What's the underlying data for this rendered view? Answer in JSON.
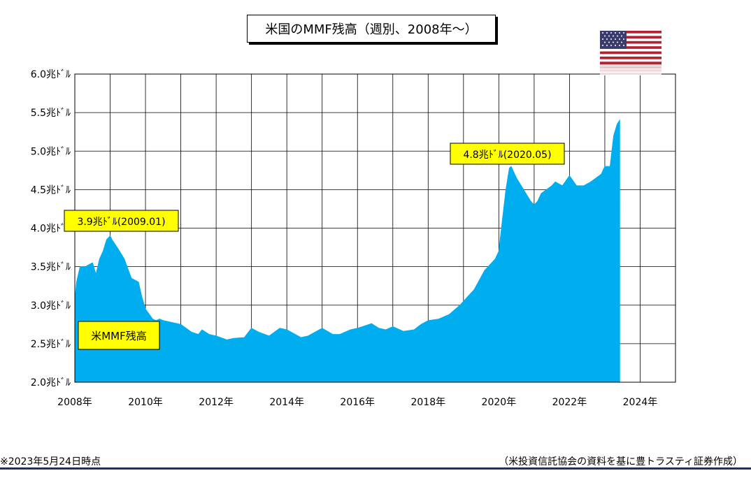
{
  "title": "米国のMMF残高（週別、2008年～）",
  "footnote": "※2023年5月24日時点",
  "source": "（米投資信託協会の資料を基に豊トラスティ証券作成）",
  "flag": {
    "icon": "us-flag-icon",
    "colors": [
      "#b22234",
      "#ffffff",
      "#3c3b6e"
    ]
  },
  "chart_data": {
    "type": "area",
    "x_unit": "year",
    "xlim": [
      2008,
      2025
    ],
    "ylim": [
      2.0,
      6.0
    ],
    "x_ticks": [
      "2008年",
      "2010年",
      "2012年",
      "2014年",
      "2016年",
      "2018年",
      "2020年",
      "2022年",
      "2024年"
    ],
    "y_ticks": [
      "2.0兆ﾄﾞﾙ",
      "2.5兆ﾄﾞﾙ",
      "3.0兆ﾄﾞﾙ",
      "3.5兆ﾄﾞﾙ",
      "4.0兆ﾄﾞﾙ",
      "4.5兆ﾄﾞﾙ",
      "5.0兆ﾄﾞﾙ",
      "5.5兆ﾄﾞﾙ",
      "6.0兆ﾄﾞﾙ"
    ],
    "grid": true,
    "fill_color": "#00adee",
    "series": [
      {
        "name": "米MMF残高",
        "x": [
          2008.0,
          2008.05,
          2008.15,
          2008.3,
          2008.5,
          2008.6,
          2008.7,
          2008.8,
          2008.9,
          2009.0,
          2009.05,
          2009.2,
          2009.4,
          2009.6,
          2009.8,
          2009.9,
          2010.0,
          2010.2,
          2010.3,
          2010.4,
          2010.5,
          2010.7,
          2011.0,
          2011.3,
          2011.5,
          2011.6,
          2011.8,
          2012.0,
          2012.3,
          2012.5,
          2012.8,
          2013.0,
          2013.2,
          2013.5,
          2013.8,
          2014.0,
          2014.4,
          2014.6,
          2014.8,
          2015.0,
          2015.3,
          2015.5,
          2015.8,
          2016.0,
          2016.4,
          2016.6,
          2016.8,
          2017.0,
          2017.3,
          2017.6,
          2017.8,
          2018.0,
          2018.3,
          2018.6,
          2018.9,
          2019.0,
          2019.3,
          2019.6,
          2019.9,
          2020.0,
          2020.1,
          2020.2,
          2020.3,
          2020.35,
          2020.5,
          2020.7,
          2020.9,
          2021.0,
          2021.1,
          2021.2,
          2021.5,
          2021.6,
          2021.8,
          2022.0,
          2022.2,
          2022.4,
          2022.6,
          2022.9,
          2023.0,
          2023.15,
          2023.25,
          2023.35,
          2023.42
        ],
        "y": [
          3.05,
          3.3,
          3.5,
          3.5,
          3.55,
          3.4,
          3.6,
          3.7,
          3.85,
          3.9,
          3.85,
          3.75,
          3.6,
          3.35,
          3.3,
          3.1,
          2.95,
          2.82,
          2.8,
          2.82,
          2.8,
          2.78,
          2.75,
          2.65,
          2.62,
          2.68,
          2.62,
          2.6,
          2.55,
          2.57,
          2.58,
          2.7,
          2.65,
          2.6,
          2.7,
          2.68,
          2.58,
          2.6,
          2.65,
          2.7,
          2.62,
          2.62,
          2.68,
          2.7,
          2.76,
          2.7,
          2.68,
          2.72,
          2.66,
          2.68,
          2.75,
          2.8,
          2.82,
          2.88,
          3.0,
          3.05,
          3.2,
          3.45,
          3.6,
          3.7,
          4.1,
          4.5,
          4.78,
          4.8,
          4.65,
          4.5,
          4.35,
          4.3,
          4.35,
          4.45,
          4.55,
          4.6,
          4.55,
          4.68,
          4.55,
          4.55,
          4.6,
          4.7,
          4.8,
          4.8,
          5.2,
          5.35,
          5.4
        ]
      }
    ],
    "annotations": [
      {
        "text": "3.9兆ﾄﾞﾙ(2009.01)",
        "x": 2009.0,
        "y": 3.9
      },
      {
        "text": "4.8兆ﾄﾞﾙ(2020.05)",
        "x": 2020.35,
        "y": 4.8
      }
    ]
  }
}
